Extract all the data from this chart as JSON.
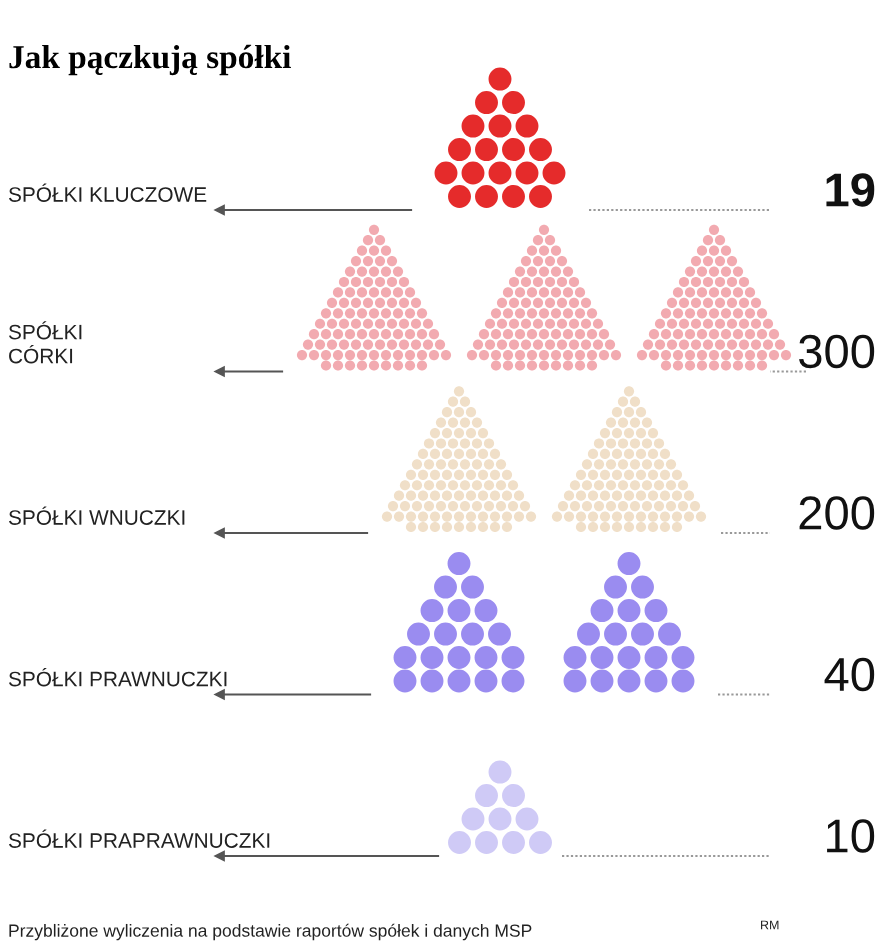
{
  "chart_data": {
    "type": "other",
    "title": "Jak pączkują spółki",
    "categories": [
      "SPÓŁKI KLUCZOWE",
      "SPÓŁKI\nCÓRKI",
      "SPÓŁKI WNUCZKI",
      "SPÓŁKI PRAWNUCZKI",
      "SPÓŁKI PRAPRAWNUCZKI"
    ],
    "values": [
      19,
      300,
      200,
      40,
      10
    ],
    "colors": [
      "#e52b2b",
      "#f2aab0",
      "#f0dfc8",
      "#9a8cf0",
      "#cfcaf6"
    ],
    "data_labels": true,
    "annotations": [
      "Przybliżone wyliczenia na podstawie raportów spółek i danych MSP",
      "RM"
    ]
  }
}
